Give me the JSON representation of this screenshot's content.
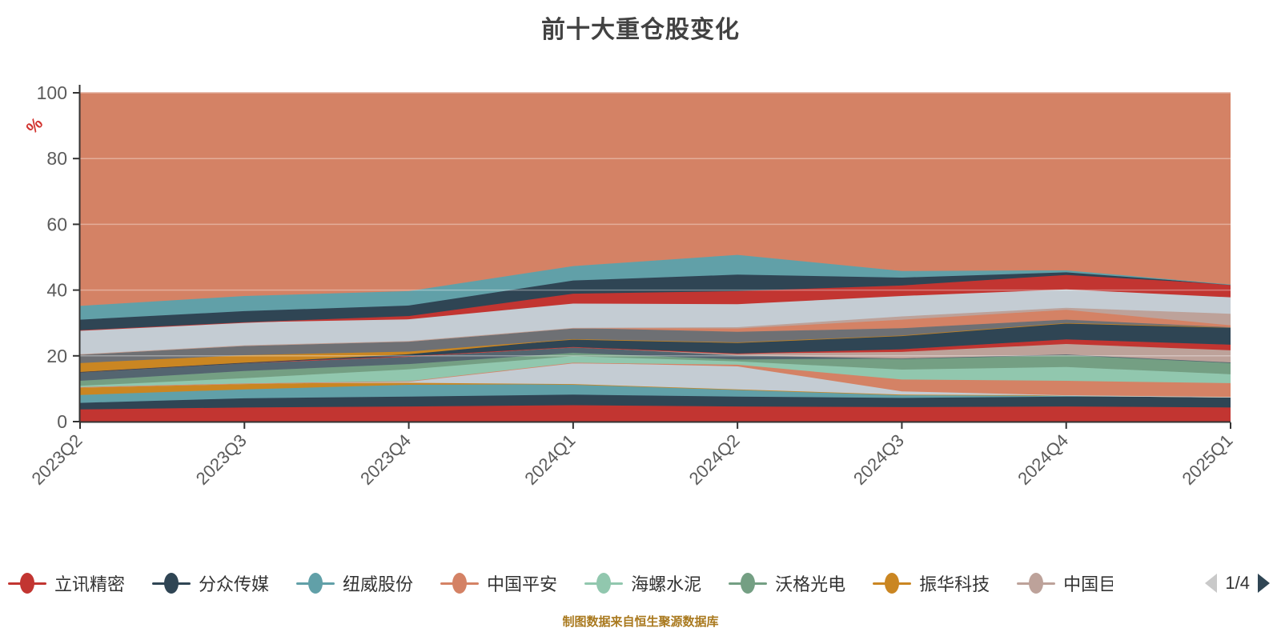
{
  "chart_data": {
    "type": "area",
    "stacked": true,
    "title": "前十大重仓股变化",
    "ylabel": "%",
    "ylabel_color": "#d23430",
    "ylim": [
      0,
      100
    ],
    "yticks": [
      0,
      20,
      40,
      60,
      80,
      100
    ],
    "grid": true,
    "legend_position": "bottom",
    "legend_page": "1/4",
    "categories": [
      "2023Q2",
      "2023Q3",
      "2023Q4",
      "2024Q1",
      "2024Q2",
      "2024Q3",
      "2024Q4",
      "2025Q1"
    ],
    "series": [
      {
        "name": "立讯精密",
        "color": "#c23531",
        "values": [
          3.7,
          4.3,
          4.6,
          5.0,
          4.6,
          4.4,
          4.6,
          4.3
        ]
      },
      {
        "name": "分众传媒",
        "color": "#2f4554",
        "values": [
          2.0,
          2.8,
          3.0,
          3.2,
          3.0,
          2.8,
          3.0,
          3.2
        ]
      },
      {
        "name": "纽威股份",
        "color": "#61a0a8",
        "values": [
          2.4,
          2.7,
          3.6,
          3.2,
          2.2,
          1.0,
          0.4,
          0.0
        ]
      },
      {
        "name": "振华科技",
        "color": "#ca8622",
        "values": [
          2.4,
          1.8,
          0.6,
          0.0,
          0.0,
          0.0,
          0.0,
          0.0
        ]
      },
      {
        "name": "unlabeled-a",
        "color": "#c4ccd3",
        "values": [
          0.0,
          0.0,
          0.5,
          6.5,
          7.0,
          1.0,
          0.0,
          0.0
        ]
      },
      {
        "name": "中国平安",
        "color": "#d48265",
        "values": [
          0.0,
          0.0,
          0.0,
          0.0,
          0.5,
          3.6,
          4.4,
          4.2
        ]
      },
      {
        "name": "海螺水泥",
        "color": "#91c7ae",
        "values": [
          0.4,
          1.6,
          3.6,
          2.0,
          1.0,
          3.0,
          4.2,
          2.7
        ]
      },
      {
        "name": "沃格光电",
        "color": "#749f83",
        "values": [
          1.5,
          2.2,
          1.6,
          1.0,
          0.6,
          3.4,
          3.8,
          3.6
        ]
      },
      {
        "name": "unlabeled-b",
        "color": "#546570",
        "values": [
          2.7,
          2.5,
          2.4,
          1.8,
          1.2,
          0.0,
          0.0,
          0.0
        ]
      },
      {
        "name": "中国巨石",
        "color": "#bda29a",
        "values": [
          0.0,
          0.0,
          0.0,
          0.0,
          0.6,
          2.0,
          3.2,
          3.7
        ]
      },
      {
        "name": "unlabeled-c",
        "color": "#c23531",
        "values": [
          0.0,
          0.0,
          0.0,
          0.0,
          0.0,
          0.8,
          1.4,
          1.7
        ]
      },
      {
        "name": "unlabeled-d",
        "color": "#2f4554",
        "values": [
          0.0,
          0.0,
          0.6,
          2.4,
          3.4,
          4.2,
          5.0,
          5.3
        ]
      },
      {
        "name": "unlabeled-e",
        "color": "#ca8622",
        "values": [
          2.7,
          2.3,
          0.8,
          0.0,
          0.0,
          0.0,
          0.0,
          0.0
        ]
      },
      {
        "name": "unlabeled-f",
        "color": "#6e7074",
        "values": [
          2.7,
          3.0,
          3.2,
          3.4,
          3.2,
          2.2,
          1.0,
          0.0
        ]
      },
      {
        "name": "unlabeled-g",
        "color": "#d48265",
        "values": [
          0.0,
          0.0,
          0.0,
          0.0,
          1.0,
          2.6,
          3.0,
          0.6
        ]
      },
      {
        "name": "unlabeled-h",
        "color": "#bda29a",
        "values": [
          0.0,
          0.0,
          0.0,
          0.0,
          0.4,
          1.0,
          0.6,
          3.5
        ]
      },
      {
        "name": "unlabeled-i",
        "color": "#c4ccd3",
        "values": [
          7.3,
          7.0,
          6.6,
          7.4,
          7.0,
          6.2,
          5.6,
          5.0
        ]
      },
      {
        "name": "unlabeled-j",
        "color": "#c23531",
        "values": [
          0.0,
          0.0,
          1.0,
          3.0,
          4.0,
          3.2,
          4.4,
          3.9
        ]
      },
      {
        "name": "unlabeled-k",
        "color": "#2f4554",
        "values": [
          3.2,
          3.4,
          3.2,
          4.0,
          5.0,
          2.4,
          0.8,
          0.0
        ]
      },
      {
        "name": "unlabeled-l",
        "color": "#61a0a8",
        "values": [
          4.2,
          4.6,
          4.4,
          4.4,
          6.0,
          2.0,
          0.6,
          0.0
        ]
      },
      {
        "name": "unlabeled-top",
        "color": "#d48265",
        "values": [
          64.8,
          61.8,
          60.3,
          52.7,
          49.3,
          54.2,
          54.0,
          58.3
        ]
      }
    ]
  },
  "legend_items": [
    {
      "label": "立讯精密",
      "color": "#c23531",
      "clipped": false
    },
    {
      "label": "分众传媒",
      "color": "#2f4554",
      "clipped": false
    },
    {
      "label": "纽威股份",
      "color": "#61a0a8",
      "clipped": false
    },
    {
      "label": "中国平安",
      "color": "#d48265",
      "clipped": false
    },
    {
      "label": "海螺水泥",
      "color": "#91c7ae",
      "clipped": false
    },
    {
      "label": "沃格光电",
      "color": "#749f83",
      "clipped": false
    },
    {
      "label": "振华科技",
      "color": "#ca8622",
      "clipped": false
    },
    {
      "label": "中国巨石",
      "color": "#bda29a",
      "clipped": false
    },
    {
      "label": "中",
      "color": "#6e7074",
      "clipped": true
    }
  ],
  "pager": {
    "text": "1/4",
    "prev_color": "#c9c9c9",
    "next_color": "#2f4554"
  },
  "caption": "制图数据来自恒生聚源数据库",
  "axis_colors": {
    "line": "#333333",
    "tick_label": "#5b5b5b",
    "gridline": "rgba(255,255,255,0.35)"
  }
}
